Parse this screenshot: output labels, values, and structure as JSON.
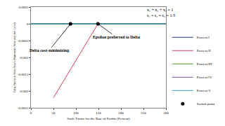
{
  "chart_data": {
    "type": "line",
    "x_label": "Scale Factor for the Rate of Profits (Percent)",
    "y_label": "Extra Profits at Delta Prices (Numeraire Value per Unit Level)",
    "xlim": [
      0,
      300
    ],
    "xticks": [
      0,
      50,
      100,
      150,
      200,
      250,
      300
    ],
    "ylim": [
      -0.0025,
      0.0005
    ],
    "yticks": [
      -0.0025,
      -0.002,
      -0.0015,
      -0.001,
      -0.0005,
      0,
      0.0005
    ],
    "grid": false,
    "legend": "right",
    "series": [
      {
        "name": "Process I",
        "color": "#1f3c88",
        "x": [
          0,
          300
        ],
        "values": [
          0,
          0
        ]
      },
      {
        "name": "Process II",
        "color": "#d9405a",
        "x": [
          50,
          149
        ],
        "values": [
          -0.0022,
          0
        ]
      },
      {
        "name": "Process III",
        "color": "#4f9a3a",
        "x": [
          0,
          300
        ],
        "values": [
          0,
          0
        ]
      },
      {
        "name": "Process IV",
        "color": "#7a4fa0",
        "x": [
          0,
          300
        ],
        "values": [
          0,
          0
        ]
      },
      {
        "name": "Process V",
        "color": "#2aa3b8",
        "x": [
          0,
          300
        ],
        "values": [
          0,
          0
        ]
      },
      {
        "name": "Switch point",
        "type": "scatter",
        "marker": "circle",
        "color": "#000000",
        "x": [
          88,
          149
        ],
        "values": [
          0,
          0
        ]
      }
    ],
    "annotations": [
      {
        "text": "x₁ + x₂ + x₃ = 1",
        "x": 255,
        "y": 0.00042
      },
      {
        "text": "s₁ = s₂ = s₃ = 1/3",
        "x": 255,
        "y": 0.00024
      },
      {
        "text": "Delta cost-minimizing",
        "x": 88,
        "y": 0,
        "ax": 40,
        "ay": -0.0008
      },
      {
        "text": "Epsilon preferred to Delta",
        "x": 149,
        "y": 0,
        "ax": 190,
        "ay": -0.0004
      }
    ]
  }
}
